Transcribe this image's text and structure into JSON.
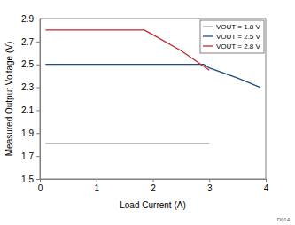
{
  "chart_data": {
    "type": "line",
    "x_label": "Load Current (A)",
    "y_label": "Measured Output Voltage (V)",
    "annotation": "D014",
    "xlim": [
      0,
      4
    ],
    "xticks": [
      0,
      1,
      2,
      3,
      4
    ],
    "ylim": [
      1.5,
      2.9
    ],
    "yticks": [
      1.5,
      1.7,
      1.9,
      2.1,
      2.3,
      2.5,
      2.7,
      2.9
    ],
    "grid": false,
    "legend": "top-right",
    "series": [
      {
        "name": "VOUT = 1.8 V",
        "color": "#a6a6a6",
        "x": [
          0.1,
          3.0
        ],
        "values": [
          1.81,
          1.81
        ]
      },
      {
        "name": "VOUT = 2.5 V",
        "color": "#1a4f80",
        "x": [
          0.1,
          2.9,
          3.0,
          3.5,
          3.9
        ],
        "values": [
          2.5,
          2.5,
          2.47,
          2.38,
          2.3
        ]
      },
      {
        "name": "VOUT = 2.8 V",
        "color": "#c0272d",
        "x": [
          0.1,
          1.85,
          2.0,
          2.5,
          3.0
        ],
        "values": [
          2.8,
          2.8,
          2.76,
          2.62,
          2.45
        ]
      }
    ]
  }
}
